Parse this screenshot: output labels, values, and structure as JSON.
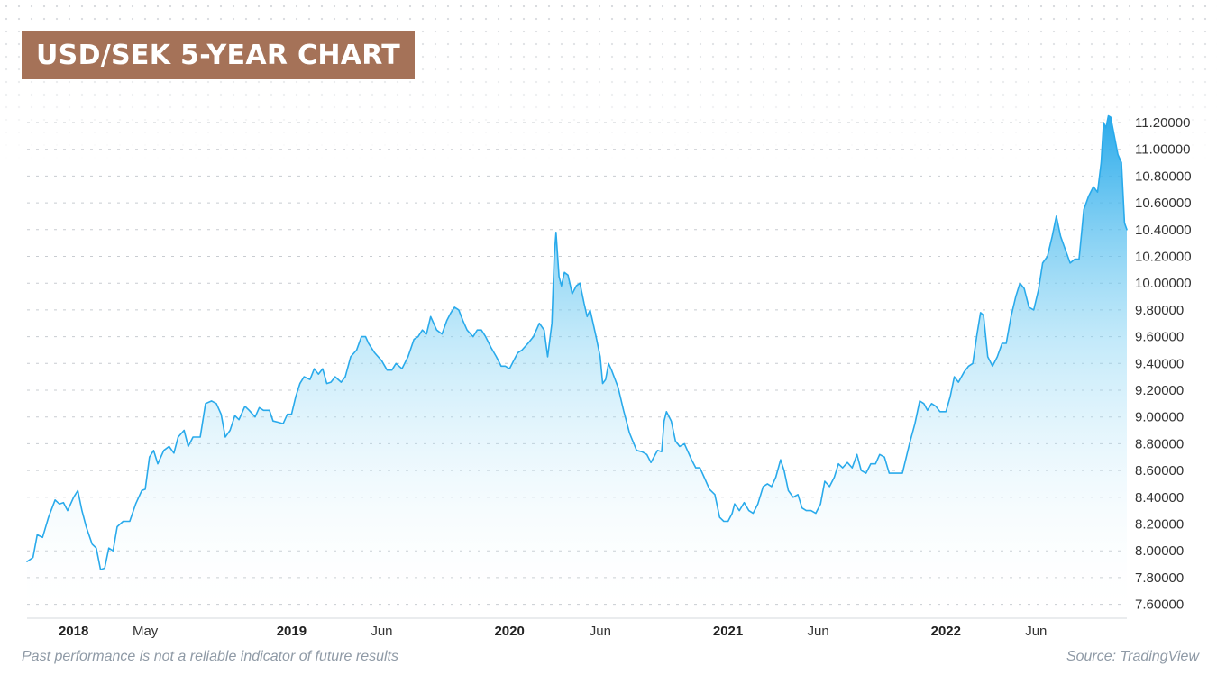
{
  "title": "USD/SEK 5-YEAR CHART",
  "footer": {
    "disclaimer": "Past performance is not a reliable indicator of future results",
    "source": "Source: TradingView"
  },
  "colors": {
    "title_bg": "#a57258",
    "line": "#29aaeb",
    "area_top": "#29aaeb",
    "grid": "#c8ccd1"
  },
  "chart_data": {
    "type": "area",
    "title": "USD/SEK 5-YEAR CHART",
    "xlabel": "",
    "ylabel": "",
    "ylim": [
      7.55,
      11.35
    ],
    "xlim": [
      "2017-10-15",
      "2022-10-31"
    ],
    "grid": true,
    "y_ticks": [
      "7.60000",
      "7.80000",
      "8.00000",
      "8.20000",
      "8.40000",
      "8.60000",
      "8.80000",
      "9.00000",
      "9.20000",
      "9.40000",
      "9.60000",
      "9.80000",
      "10.00000",
      "10.20000",
      "10.40000",
      "10.60000",
      "10.80000",
      "11.00000",
      "11.20000"
    ],
    "x_ticks": [
      {
        "label": "2018",
        "date": "2018-01-01",
        "major": true
      },
      {
        "label": "May",
        "date": "2018-05-01",
        "major": false
      },
      {
        "label": "2019",
        "date": "2019-01-01",
        "major": true
      },
      {
        "label": "Jun",
        "date": "2019-06-01",
        "major": false
      },
      {
        "label": "2020",
        "date": "2020-01-01",
        "major": true
      },
      {
        "label": "Jun",
        "date": "2020-06-01",
        "major": false
      },
      {
        "label": "2021",
        "date": "2021-01-01",
        "major": true
      },
      {
        "label": "Jun",
        "date": "2021-06-01",
        "major": false
      },
      {
        "label": "2022",
        "date": "2022-01-01",
        "major": true
      },
      {
        "label": "Jun",
        "date": "2022-06-01",
        "major": false
      }
    ],
    "series": [
      {
        "points": [
          [
            "2017-10-15",
            7.92
          ],
          [
            "2017-10-25",
            7.95
          ],
          [
            "2017-11-01",
            8.12
          ],
          [
            "2017-11-10",
            8.1
          ],
          [
            "2017-11-20",
            8.25
          ],
          [
            "2017-12-01",
            8.38
          ],
          [
            "2017-12-08",
            8.35
          ],
          [
            "2017-12-15",
            8.36
          ],
          [
            "2017-12-22",
            8.3
          ],
          [
            "2018-01-01",
            8.4
          ],
          [
            "2018-01-08",
            8.45
          ],
          [
            "2018-01-15",
            8.3
          ],
          [
            "2018-01-22",
            8.18
          ],
          [
            "2018-02-01",
            8.05
          ],
          [
            "2018-02-08",
            8.02
          ],
          [
            "2018-02-15",
            7.86
          ],
          [
            "2018-02-22",
            7.87
          ],
          [
            "2018-03-01",
            8.02
          ],
          [
            "2018-03-08",
            8.0
          ],
          [
            "2018-03-15",
            8.18
          ],
          [
            "2018-03-25",
            8.22
          ],
          [
            "2018-04-05",
            8.22
          ],
          [
            "2018-04-15",
            8.35
          ],
          [
            "2018-04-25",
            8.45
          ],
          [
            "2018-05-01",
            8.46
          ],
          [
            "2018-05-08",
            8.7
          ],
          [
            "2018-05-15",
            8.75
          ],
          [
            "2018-05-22",
            8.65
          ],
          [
            "2018-06-01",
            8.75
          ],
          [
            "2018-06-10",
            8.78
          ],
          [
            "2018-06-18",
            8.73
          ],
          [
            "2018-06-25",
            8.85
          ],
          [
            "2018-07-05",
            8.9
          ],
          [
            "2018-07-12",
            8.78
          ],
          [
            "2018-07-20",
            8.85
          ],
          [
            "2018-08-01",
            8.85
          ],
          [
            "2018-08-10",
            9.1
          ],
          [
            "2018-08-20",
            9.12
          ],
          [
            "2018-08-28",
            9.1
          ],
          [
            "2018-09-05",
            9.02
          ],
          [
            "2018-09-12",
            8.85
          ],
          [
            "2018-09-20",
            8.9
          ],
          [
            "2018-09-28",
            9.01
          ],
          [
            "2018-10-05",
            8.98
          ],
          [
            "2018-10-15",
            9.08
          ],
          [
            "2018-10-22",
            9.05
          ],
          [
            "2018-11-01",
            9.0
          ],
          [
            "2018-11-08",
            9.07
          ],
          [
            "2018-11-15",
            9.05
          ],
          [
            "2018-11-25",
            9.05
          ],
          [
            "2018-12-01",
            8.97
          ],
          [
            "2018-12-10",
            8.96
          ],
          [
            "2018-12-18",
            8.95
          ],
          [
            "2018-12-25",
            9.02
          ],
          [
            "2019-01-01",
            9.02
          ],
          [
            "2019-01-08",
            9.15
          ],
          [
            "2019-01-15",
            9.25
          ],
          [
            "2019-01-22",
            9.3
          ],
          [
            "2019-02-01",
            9.28
          ],
          [
            "2019-02-08",
            9.36
          ],
          [
            "2019-02-15",
            9.32
          ],
          [
            "2019-02-22",
            9.36
          ],
          [
            "2019-03-01",
            9.25
          ],
          [
            "2019-03-08",
            9.26
          ],
          [
            "2019-03-15",
            9.3
          ],
          [
            "2019-03-25",
            9.26
          ],
          [
            "2019-04-01",
            9.3
          ],
          [
            "2019-04-10",
            9.45
          ],
          [
            "2019-04-20",
            9.5
          ],
          [
            "2019-04-28",
            9.6
          ],
          [
            "2019-05-05",
            9.6
          ],
          [
            "2019-05-10",
            9.55
          ],
          [
            "2019-05-20",
            9.48
          ],
          [
            "2019-06-01",
            9.42
          ],
          [
            "2019-06-10",
            9.35
          ],
          [
            "2019-06-18",
            9.35
          ],
          [
            "2019-06-25",
            9.4
          ],
          [
            "2019-07-05",
            9.36
          ],
          [
            "2019-07-15",
            9.45
          ],
          [
            "2019-07-25",
            9.58
          ],
          [
            "2019-08-01",
            9.6
          ],
          [
            "2019-08-08",
            9.65
          ],
          [
            "2019-08-15",
            9.62
          ],
          [
            "2019-08-22",
            9.75
          ],
          [
            "2019-09-01",
            9.65
          ],
          [
            "2019-09-10",
            9.62
          ],
          [
            "2019-09-18",
            9.72
          ],
          [
            "2019-09-25",
            9.78
          ],
          [
            "2019-10-01",
            9.82
          ],
          [
            "2019-10-08",
            9.8
          ],
          [
            "2019-10-15",
            9.72
          ],
          [
            "2019-10-22",
            9.65
          ],
          [
            "2019-11-01",
            9.6
          ],
          [
            "2019-11-08",
            9.65
          ],
          [
            "2019-11-15",
            9.65
          ],
          [
            "2019-11-22",
            9.6
          ],
          [
            "2019-12-01",
            9.52
          ],
          [
            "2019-12-10",
            9.45
          ],
          [
            "2019-12-18",
            9.38
          ],
          [
            "2019-12-25",
            9.38
          ],
          [
            "2020-01-01",
            9.36
          ],
          [
            "2020-01-08",
            9.42
          ],
          [
            "2020-01-15",
            9.48
          ],
          [
            "2020-01-22",
            9.5
          ],
          [
            "2020-02-01",
            9.55
          ],
          [
            "2020-02-10",
            9.6
          ],
          [
            "2020-02-20",
            9.7
          ],
          [
            "2020-02-28",
            9.65
          ],
          [
            "2020-03-05",
            9.45
          ],
          [
            "2020-03-12",
            9.7
          ],
          [
            "2020-03-16",
            10.2
          ],
          [
            "2020-03-19",
            10.38
          ],
          [
            "2020-03-24",
            10.05
          ],
          [
            "2020-03-28",
            9.98
          ],
          [
            "2020-04-02",
            10.08
          ],
          [
            "2020-04-08",
            10.06
          ],
          [
            "2020-04-15",
            9.92
          ],
          [
            "2020-04-22",
            9.98
          ],
          [
            "2020-04-28",
            10.0
          ],
          [
            "2020-05-05",
            9.85
          ],
          [
            "2020-05-10",
            9.75
          ],
          [
            "2020-05-15",
            9.8
          ],
          [
            "2020-05-20",
            9.7
          ],
          [
            "2020-05-25",
            9.6
          ],
          [
            "2020-06-01",
            9.45
          ],
          [
            "2020-06-05",
            9.25
          ],
          [
            "2020-06-10",
            9.28
          ],
          [
            "2020-06-15",
            9.4
          ],
          [
            "2020-06-20",
            9.35
          ],
          [
            "2020-07-01",
            9.22
          ],
          [
            "2020-07-10",
            9.05
          ],
          [
            "2020-07-20",
            8.88
          ],
          [
            "2020-08-01",
            8.75
          ],
          [
            "2020-08-10",
            8.74
          ],
          [
            "2020-08-18",
            8.72
          ],
          [
            "2020-08-25",
            8.66
          ],
          [
            "2020-09-05",
            8.75
          ],
          [
            "2020-09-12",
            8.74
          ],
          [
            "2020-09-16",
            8.97
          ],
          [
            "2020-09-20",
            9.04
          ],
          [
            "2020-09-28",
            8.97
          ],
          [
            "2020-10-05",
            8.82
          ],
          [
            "2020-10-12",
            8.78
          ],
          [
            "2020-10-20",
            8.8
          ],
          [
            "2020-10-25",
            8.75
          ],
          [
            "2020-11-01",
            8.68
          ],
          [
            "2020-11-08",
            8.62
          ],
          [
            "2020-11-15",
            8.62
          ],
          [
            "2020-11-22",
            8.55
          ],
          [
            "2020-12-01",
            8.46
          ],
          [
            "2020-12-10",
            8.42
          ],
          [
            "2020-12-18",
            8.25
          ],
          [
            "2020-12-25",
            8.22
          ],
          [
            "2021-01-01",
            8.22
          ],
          [
            "2021-01-08",
            8.28
          ],
          [
            "2021-01-12",
            8.35
          ],
          [
            "2021-01-20",
            8.3
          ],
          [
            "2021-01-28",
            8.36
          ],
          [
            "2021-02-05",
            8.3
          ],
          [
            "2021-02-12",
            8.28
          ],
          [
            "2021-02-20",
            8.35
          ],
          [
            "2021-03-01",
            8.48
          ],
          [
            "2021-03-08",
            8.5
          ],
          [
            "2021-03-15",
            8.48
          ],
          [
            "2021-03-22",
            8.55
          ],
          [
            "2021-03-30",
            8.68
          ],
          [
            "2021-04-05",
            8.6
          ],
          [
            "2021-04-12",
            8.45
          ],
          [
            "2021-04-20",
            8.4
          ],
          [
            "2021-04-28",
            8.42
          ],
          [
            "2021-05-05",
            8.32
          ],
          [
            "2021-05-12",
            8.3
          ],
          [
            "2021-05-20",
            8.3
          ],
          [
            "2021-05-28",
            8.28
          ],
          [
            "2021-06-05",
            8.35
          ],
          [
            "2021-06-12",
            8.52
          ],
          [
            "2021-06-20",
            8.48
          ],
          [
            "2021-06-28",
            8.55
          ],
          [
            "2021-07-05",
            8.65
          ],
          [
            "2021-07-12",
            8.62
          ],
          [
            "2021-07-20",
            8.66
          ],
          [
            "2021-07-28",
            8.62
          ],
          [
            "2021-08-05",
            8.72
          ],
          [
            "2021-08-12",
            8.6
          ],
          [
            "2021-08-20",
            8.58
          ],
          [
            "2021-08-28",
            8.65
          ],
          [
            "2021-09-05",
            8.65
          ],
          [
            "2021-09-12",
            8.72
          ],
          [
            "2021-09-20",
            8.7
          ],
          [
            "2021-09-28",
            8.58
          ],
          [
            "2021-10-05",
            8.58
          ],
          [
            "2021-10-12",
            8.58
          ],
          [
            "2021-10-20",
            8.58
          ],
          [
            "2021-11-01",
            8.8
          ],
          [
            "2021-11-10",
            8.95
          ],
          [
            "2021-11-18",
            9.12
          ],
          [
            "2021-11-25",
            9.1
          ],
          [
            "2021-12-01",
            9.05
          ],
          [
            "2021-12-08",
            9.1
          ],
          [
            "2021-12-15",
            9.08
          ],
          [
            "2021-12-22",
            9.04
          ],
          [
            "2022-01-01",
            9.04
          ],
          [
            "2022-01-08",
            9.15
          ],
          [
            "2022-01-15",
            9.3
          ],
          [
            "2022-01-22",
            9.26
          ],
          [
            "2022-02-01",
            9.34
          ],
          [
            "2022-02-08",
            9.38
          ],
          [
            "2022-02-15",
            9.4
          ],
          [
            "2022-02-22",
            9.62
          ],
          [
            "2022-02-28",
            9.78
          ],
          [
            "2022-03-05",
            9.76
          ],
          [
            "2022-03-12",
            9.45
          ],
          [
            "2022-03-20",
            9.38
          ],
          [
            "2022-03-28",
            9.45
          ],
          [
            "2022-04-05",
            9.55
          ],
          [
            "2022-04-12",
            9.55
          ],
          [
            "2022-04-20",
            9.75
          ],
          [
            "2022-04-28",
            9.9
          ],
          [
            "2022-05-05",
            10.0
          ],
          [
            "2022-05-12",
            9.96
          ],
          [
            "2022-05-20",
            9.82
          ],
          [
            "2022-05-28",
            9.8
          ],
          [
            "2022-06-05",
            9.95
          ],
          [
            "2022-06-12",
            10.15
          ],
          [
            "2022-06-20",
            10.2
          ],
          [
            "2022-06-28",
            10.35
          ],
          [
            "2022-07-05",
            10.5
          ],
          [
            "2022-07-12",
            10.35
          ],
          [
            "2022-07-20",
            10.25
          ],
          [
            "2022-07-28",
            10.15
          ],
          [
            "2022-08-05",
            10.18
          ],
          [
            "2022-08-12",
            10.18
          ],
          [
            "2022-08-20",
            10.55
          ],
          [
            "2022-08-28",
            10.65
          ],
          [
            "2022-09-05",
            10.72
          ],
          [
            "2022-09-12",
            10.68
          ],
          [
            "2022-09-18",
            10.9
          ],
          [
            "2022-09-22",
            11.2
          ],
          [
            "2022-09-26",
            11.16
          ],
          [
            "2022-09-30",
            11.25
          ],
          [
            "2022-10-04",
            11.24
          ],
          [
            "2022-10-10",
            11.1
          ],
          [
            "2022-10-16",
            10.96
          ],
          [
            "2022-10-22",
            10.9
          ],
          [
            "2022-10-27",
            10.45
          ],
          [
            "2022-10-31",
            10.4
          ]
        ]
      }
    ]
  }
}
